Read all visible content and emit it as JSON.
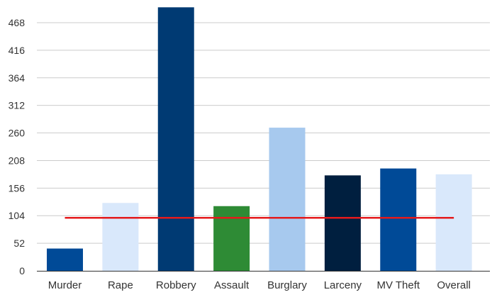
{
  "chart_data": {
    "type": "bar",
    "title": "",
    "xlabel": "",
    "ylabel": "",
    "categories": [
      "Murder",
      "Rape",
      "Robbery",
      "Assault",
      "Burglary",
      "Larceny",
      "MV Theft",
      "Overall"
    ],
    "values": [
      42,
      128,
      497,
      122,
      270,
      180,
      193,
      182
    ],
    "bar_colors": [
      "#004a97",
      "#d9e8fb",
      "#003a73",
      "#2e8b35",
      "#a7c9ee",
      "#001f3f",
      "#004a97",
      "#d9e8fb"
    ],
    "yticks": [
      0,
      52,
      104,
      156,
      208,
      260,
      312,
      364,
      416,
      468
    ],
    "ylim": [
      0,
      500
    ],
    "grid": true,
    "reference_line": {
      "value": 100,
      "color": "#e41a1c"
    }
  }
}
